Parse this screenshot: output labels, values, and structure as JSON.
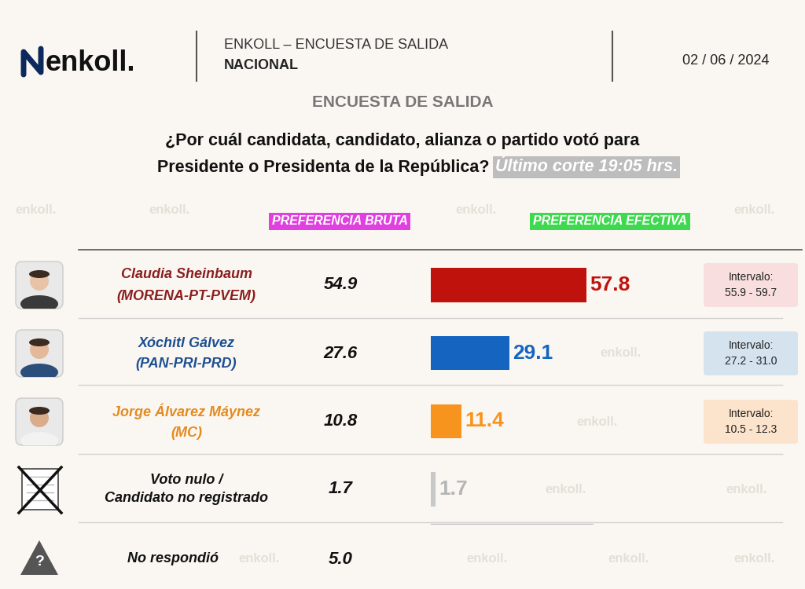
{
  "header": {
    "logo": "enkoll.",
    "source": "ENKOLL – ENCUESTA DE SALIDA",
    "scope": "NACIONAL",
    "date": "02 / 06 / 2024",
    "watermark": "enkoll."
  },
  "chart_data": {
    "type": "bar",
    "orientation": "horizontal",
    "title": "ENCUESTA DE SALIDA",
    "question": [
      "¿Por cuál candidata, candidato, alianza o partido votó para",
      "Presidente o Presidenta de la República?"
    ],
    "cutoff": "Último corte 19:05 hrs.",
    "brute_title": "PREFERENCIA BRUTA",
    "effective_title": "PREFERENCIA EFECTIVA",
    "categories": [
      "Claudia Sheinbaum",
      "Xóchitl Gálvez",
      "Jorge Álvarez Máynez",
      "Voto nulo /\nCandidato no registrado"
    ],
    "parties": [
      "(MORENA-PT-PVEM)",
      "(PAN-PRI-PRD)",
      "(MC)",
      null
    ],
    "brute_values": [
      54.9,
      27.6,
      10.8,
      1.7
    ],
    "values": [
      57.8,
      29.1,
      11.4,
      1.7
    ],
    "colors": [
      "#c0120c",
      "#1565c0",
      "#f7941d",
      "#c8c8c8"
    ],
    "interval_title": "Intervalo:",
    "intervals": [
      "55.9 - 59.7",
      "27.2 - 31.0",
      "10.5 - 12.3",
      null
    ],
    "no_response": {
      "label": "No respondió",
      "brute_value": 5.0,
      "icon": "?"
    },
    "data_labels": true,
    "xlim": [
      0,
      60
    ],
    "xticks": [],
    "tick_labels": false
  }
}
